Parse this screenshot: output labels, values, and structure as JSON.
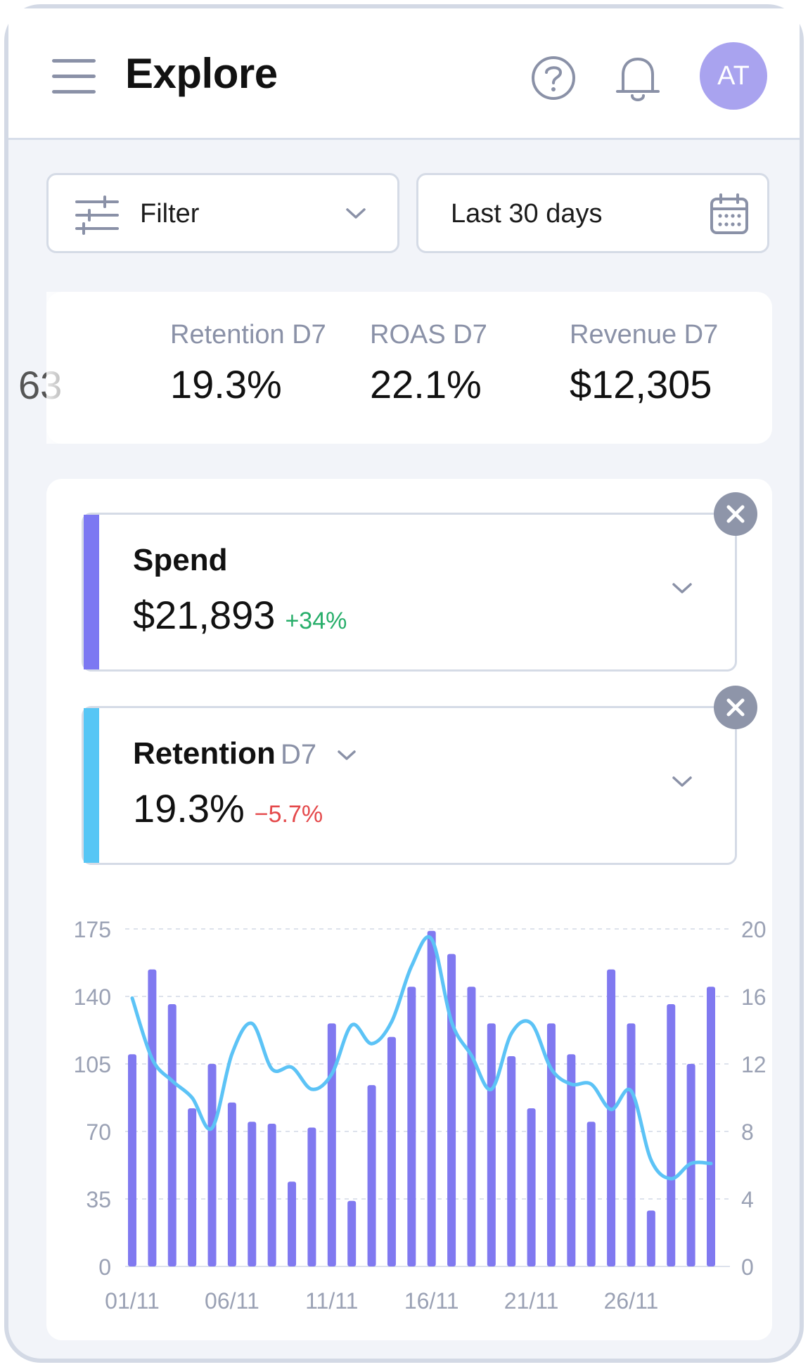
{
  "header": {
    "title": "Explore",
    "avatar_initials": "AT",
    "icons": [
      "menu-icon",
      "help-icon",
      "bell-icon"
    ]
  },
  "filter": {
    "label": "Filter"
  },
  "date_range": {
    "label": "Last 30 days"
  },
  "summary_metrics": [
    {
      "label": "",
      "value": "63"
    },
    {
      "label": "Retention D7",
      "value": "19.3%"
    },
    {
      "label": "ROAS D7",
      "value": "22.1%"
    },
    {
      "label": "Revenue D7",
      "value": "$12,305"
    }
  ],
  "metric_cards": [
    {
      "title": "Spend",
      "value": "$21,893",
      "change": "+34%",
      "color": "#7c78f2",
      "change_color": "#27ae6a"
    },
    {
      "title": "Retention",
      "subtitle": "D7",
      "value": "19.3%",
      "change": "−5.7%",
      "color": "#56c6f5",
      "change_color": "#e4494b"
    }
  ],
  "chart_data": {
    "type": "bar",
    "x": [
      "01/11",
      "02/11",
      "03/11",
      "04/11",
      "05/11",
      "06/11",
      "07/11",
      "08/11",
      "09/11",
      "10/11",
      "11/11",
      "12/11",
      "13/11",
      "14/11",
      "15/11",
      "16/11",
      "17/11",
      "18/11",
      "19/11",
      "20/11",
      "21/11",
      "22/11",
      "23/11",
      "24/11",
      "25/11",
      "26/11",
      "27/11",
      "28/11",
      "29/11",
      "30/11"
    ],
    "x_tick_labels": [
      "01/11",
      "06/11",
      "11/11",
      "16/11",
      "21/11",
      "26/11"
    ],
    "series": [
      {
        "type": "bar",
        "axis": "left",
        "color": "#8079f0",
        "values": [
          110,
          154,
          136,
          82,
          105,
          85,
          75,
          74,
          44,
          72,
          126,
          34,
          94,
          119,
          145,
          174,
          162,
          145,
          126,
          109,
          82,
          126,
          110,
          75,
          154,
          126,
          29,
          136,
          105,
          145
        ]
      },
      {
        "type": "line",
        "axis": "right",
        "color": "#5cc3f6",
        "values": [
          15.9,
          12.3,
          11.0,
          10.0,
          8.2,
          12.6,
          14.4,
          11.7,
          11.8,
          10.5,
          11.4,
          14.3,
          13.2,
          14.5,
          17.8,
          19.4,
          14.5,
          12.5,
          10.5,
          13.8,
          14.4,
          11.7,
          10.8,
          10.8,
          9.3,
          10.4,
          6.3,
          5.2,
          6.1,
          6.1
        ]
      }
    ],
    "y_left": {
      "min": 0,
      "max": 175,
      "ticks": [
        0,
        35,
        70,
        105,
        140,
        175
      ]
    },
    "y_right": {
      "min": 0,
      "max": 20,
      "ticks": [
        0,
        4,
        8,
        12,
        16,
        20
      ]
    },
    "grid": "horizontal-dashed",
    "legend": "none"
  }
}
